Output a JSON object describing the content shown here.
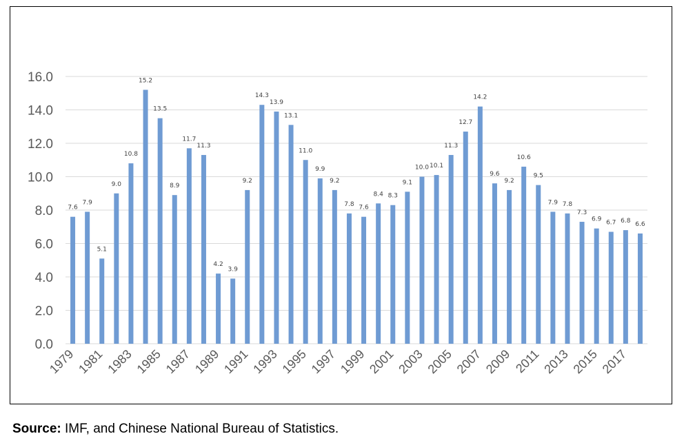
{
  "chart_data": {
    "type": "bar",
    "title": "",
    "xlabel": "",
    "ylabel": "",
    "ylim": [
      0,
      16
    ],
    "y_ticks": [
      "0.0",
      "2.0",
      "4.0",
      "6.0",
      "8.0",
      "10.0",
      "12.0",
      "14.0",
      "16.0"
    ],
    "grid": true,
    "bar_color": "#6f9bd3",
    "categories": [
      "1979",
      "1980",
      "1981",
      "1982",
      "1983",
      "1984",
      "1985",
      "1986",
      "1987",
      "1988",
      "1989",
      "1990",
      "1991",
      "1992",
      "1993",
      "1994",
      "1995",
      "1996",
      "1997",
      "1998",
      "1999",
      "2000",
      "2001",
      "2002",
      "2003",
      "2004",
      "2005",
      "2006",
      "2007",
      "2008",
      "2009",
      "2010",
      "2011",
      "2012",
      "2013",
      "2014",
      "2015",
      "2016",
      "2017",
      "2018"
    ],
    "x_tick_labels": [
      "1979",
      "",
      "1981",
      "",
      "1983",
      "",
      "1985",
      "",
      "1987",
      "",
      "1989",
      "",
      "1991",
      "",
      "1993",
      "",
      "1995",
      "",
      "1997",
      "",
      "1999",
      "",
      "2001",
      "",
      "2003",
      "",
      "2005",
      "",
      "2007",
      "",
      "2009",
      "",
      "2011",
      "",
      "2013",
      "",
      "2015",
      "",
      "2017",
      ""
    ],
    "values": [
      7.6,
      7.9,
      5.1,
      9.0,
      10.8,
      15.2,
      13.5,
      8.9,
      11.7,
      11.3,
      4.2,
      3.9,
      9.2,
      14.3,
      13.9,
      13.1,
      11.0,
      9.9,
      9.2,
      7.8,
      7.6,
      8.4,
      8.3,
      9.1,
      10.0,
      10.1,
      11.3,
      12.7,
      14.2,
      9.6,
      9.2,
      10.6,
      9.5,
      7.9,
      7.8,
      7.3,
      6.9,
      6.7,
      6.8,
      6.6
    ],
    "data_labels": [
      "7.6",
      "7.9",
      "5.1",
      "9.0",
      "10.8",
      "15.2",
      "13.5",
      "8.9",
      "11.7",
      "11.3",
      "4.2",
      "3.9",
      "9.2",
      "14.3",
      "13.9",
      "13.1",
      "11.0",
      "9.9",
      "9.2",
      "7.8",
      "7.6",
      "8.4",
      "8.3",
      "9.1",
      "10.0",
      "10.1",
      "11.3",
      "12.7",
      "14.2",
      "9.6",
      "9.2",
      "10.6",
      "9.5",
      "7.9",
      "7.8",
      "7.3",
      "6.9",
      "6.7",
      "6.8",
      "6.6"
    ]
  },
  "source": {
    "label": "Source:",
    "text": " IMF, and Chinese National Bureau of Statistics."
  }
}
